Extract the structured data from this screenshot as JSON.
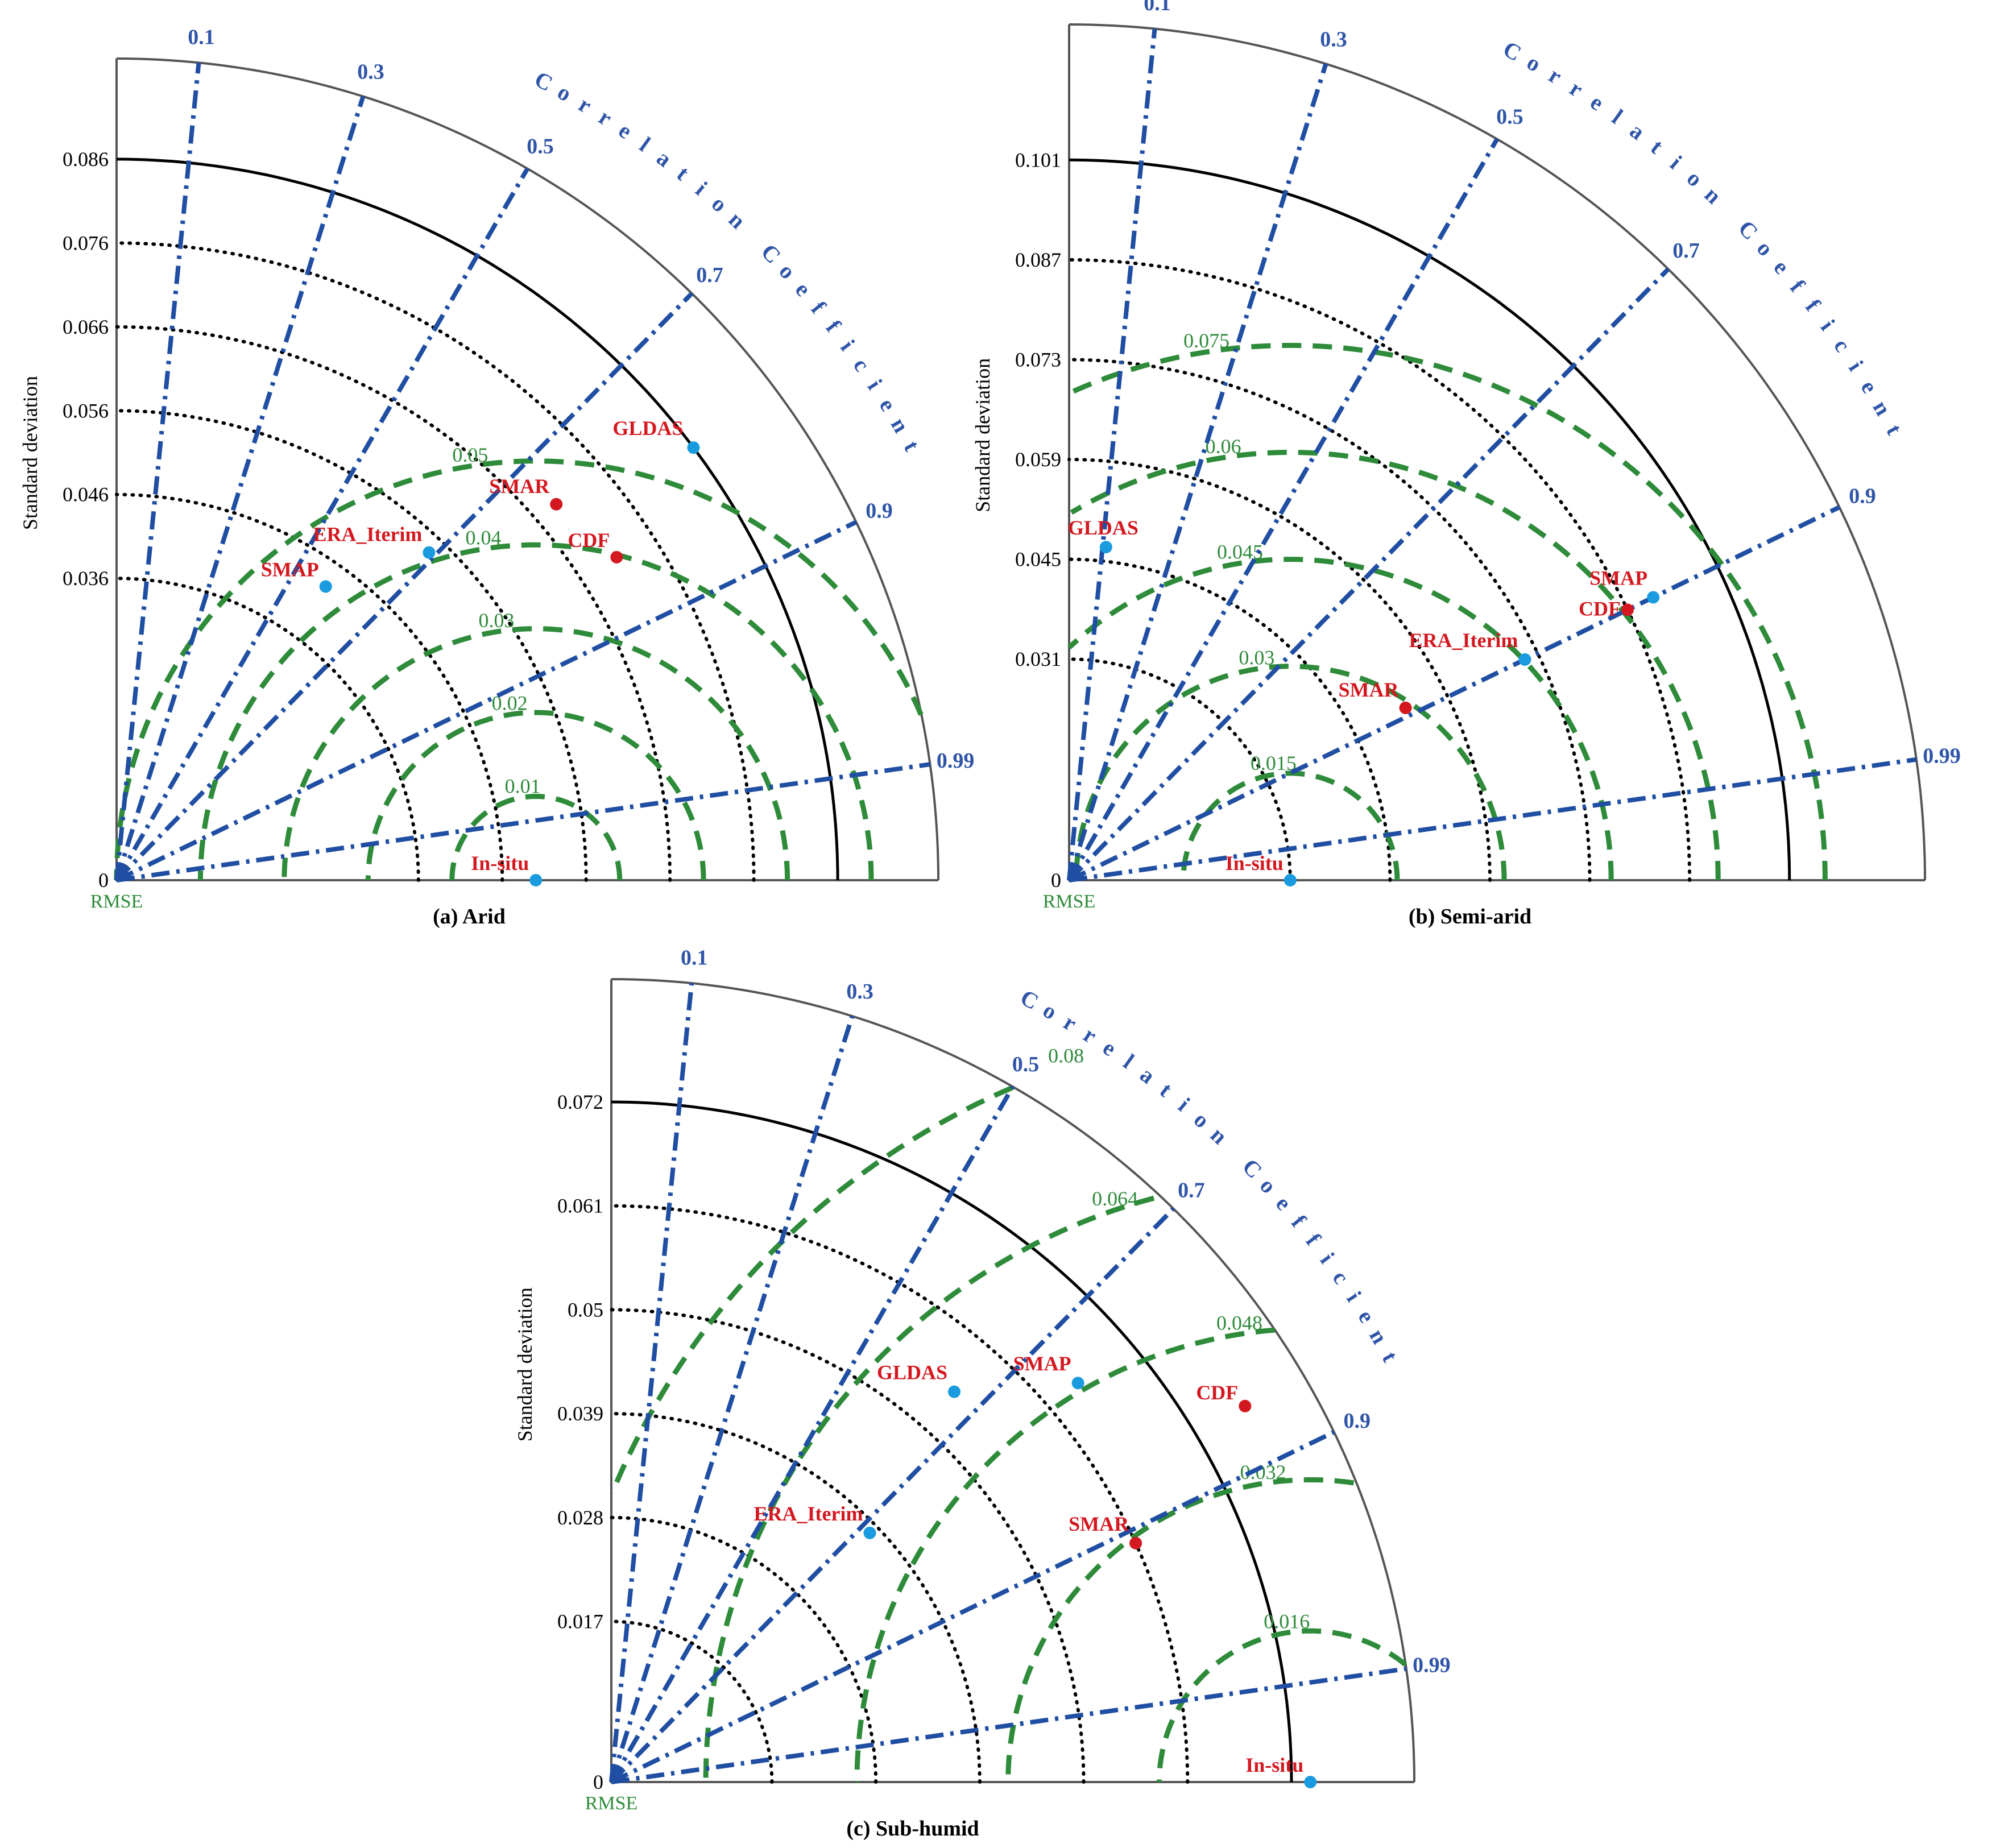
{
  "colors": {
    "corr_line": "#1f4ea3",
    "corr_label": "#2f55a8",
    "rmse_arc": "#2e8b3a",
    "rmse_label": "#2e8b3a",
    "std_dotted": "#000000",
    "ref_arc": "#000000",
    "outer_arc": "#555555",
    "point_blue": "#1a9be0",
    "point_red": "#d4181f",
    "label_red": "#d4181f",
    "text": "#000000"
  },
  "chart_data": [
    {
      "type": "taylor",
      "caption": "(a) Arid",
      "ylabel": "Standard deviation",
      "corr_axis_label": "Correlation Coefficient",
      "rmse_label": "RMSE",
      "std_max": 0.098,
      "reference_std": 0.086,
      "std_ticks": [
        "0",
        "0.036",
        "0.046",
        "0.056",
        "0.066",
        "0.076",
        "0.086"
      ],
      "corr_ticks": [
        "0.1",
        "0.3",
        "0.5",
        "0.7",
        "0.9",
        "0.99"
      ],
      "rmse_ticks": [
        "0",
        "0.01",
        "0.02",
        "0.03",
        "0.04",
        "0.05"
      ],
      "rmse_center_std": 0.05,
      "points": [
        {
          "name": "GLDAS",
          "std": 0.086,
          "corr": 0.8,
          "color": "blue"
        },
        {
          "name": "CDF",
          "std": 0.071,
          "corr": 0.84,
          "color": "red"
        },
        {
          "name": "SMAR",
          "std": 0.069,
          "corr": 0.76,
          "color": "red"
        },
        {
          "name": "ERA_Iterim",
          "std": 0.054,
          "corr": 0.69,
          "color": "blue"
        },
        {
          "name": "SMAP",
          "std": 0.043,
          "corr": 0.58,
          "color": "blue"
        },
        {
          "name": "In-situ",
          "std": 0.05,
          "corr": 1.0,
          "color": "blue"
        }
      ]
    },
    {
      "type": "taylor",
      "caption": "(b) Semi-arid",
      "ylabel": "Standard deviation",
      "corr_axis_label": "Correlation Coefficient",
      "rmse_label": "RMSE",
      "std_max": 0.12,
      "reference_std": 0.101,
      "std_ticks": [
        "0",
        "0.031",
        "0.045",
        "0.059",
        "0.073",
        "0.087",
        "0.101"
      ],
      "corr_ticks": [
        "0.1",
        "0.3",
        "0.5",
        "0.7",
        "0.9",
        "0.99"
      ],
      "rmse_ticks": [
        "0",
        "0.015",
        "0.03",
        "0.045",
        "0.06",
        "0.075"
      ],
      "rmse_center_std": 0.031,
      "points": [
        {
          "name": "SMAP",
          "std": 0.091,
          "corr": 0.9,
          "color": "blue"
        },
        {
          "name": "CDF",
          "std": 0.087,
          "corr": 0.9,
          "color": "red"
        },
        {
          "name": "ERA_Iterim",
          "std": 0.071,
          "corr": 0.9,
          "color": "blue"
        },
        {
          "name": "SMAR",
          "std": 0.053,
          "corr": 0.89,
          "color": "red"
        },
        {
          "name": "GLDAS",
          "std": 0.047,
          "corr": 0.11,
          "color": "blue"
        },
        {
          "name": "In-situ",
          "std": 0.031,
          "corr": 1.0,
          "color": "blue"
        }
      ]
    },
    {
      "type": "taylor",
      "caption": "(c) Sub-humid",
      "ylabel": "Standard deviation",
      "corr_axis_label": "Correlation Coefficient",
      "rmse_label": "RMSE",
      "std_max": 0.085,
      "reference_std": 0.072,
      "std_ticks": [
        "0",
        "0.017",
        "0.028",
        "0.039",
        "0.05",
        "0.061",
        "0.072"
      ],
      "corr_ticks": [
        "0.1",
        "0.3",
        "0.5",
        "0.7",
        "0.9",
        "0.99"
      ],
      "rmse_ticks": [
        "0",
        "0.016",
        "0.032",
        "0.048",
        "0.064",
        "0.08"
      ],
      "rmse_center_std": 0.074,
      "points": [
        {
          "name": "CDF",
          "std": 0.078,
          "corr": 0.86,
          "color": "red"
        },
        {
          "name": "SMAP",
          "std": 0.065,
          "corr": 0.76,
          "color": "blue"
        },
        {
          "name": "GLDAS",
          "std": 0.055,
          "corr": 0.66,
          "color": "blue"
        },
        {
          "name": "SMAR",
          "std": 0.061,
          "corr": 0.91,
          "color": "red"
        },
        {
          "name": "ERA_Iterim",
          "std": 0.038,
          "corr": 0.72,
          "color": "blue"
        },
        {
          "name": "In-situ",
          "std": 0.074,
          "corr": 1.0,
          "color": "blue"
        }
      ]
    }
  ]
}
